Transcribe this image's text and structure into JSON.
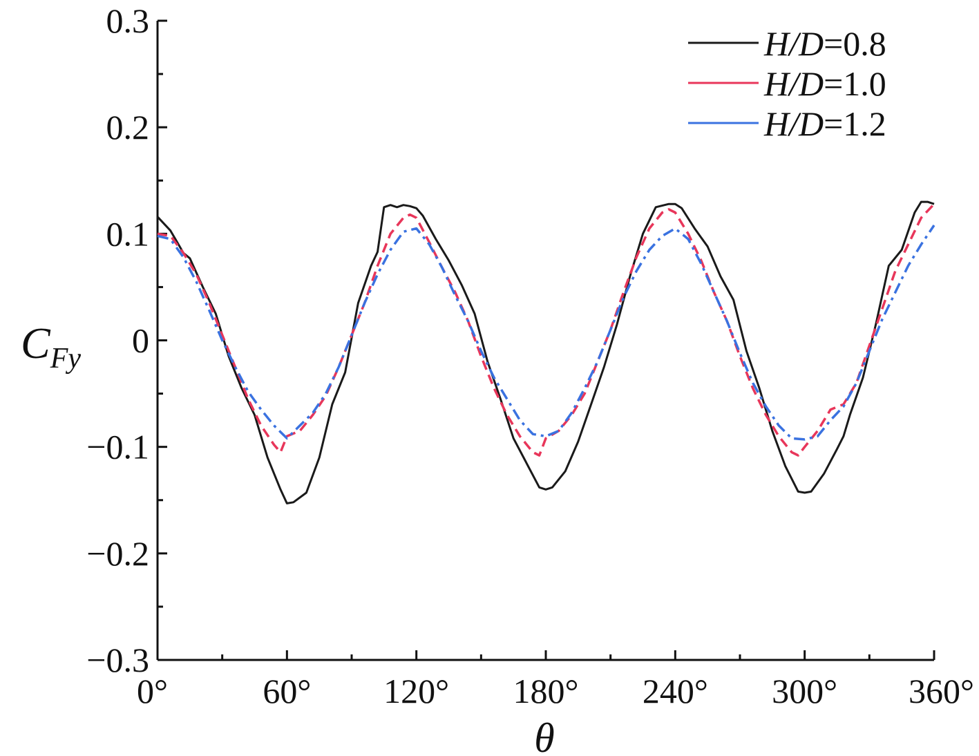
{
  "chart_data": {
    "type": "line",
    "title": "",
    "xlabel": "θ",
    "ylabel": {
      "main": "C",
      "sub": "Fy"
    },
    "xlim": [
      0,
      360
    ],
    "ylim": [
      -0.3,
      0.3
    ],
    "x_ticks": [
      0,
      60,
      120,
      180,
      240,
      300,
      360
    ],
    "x_tick_labels": [
      "0°",
      "60°",
      "120°",
      "180°",
      "240°",
      "300°",
      "360°"
    ],
    "y_ticks": [
      0.3,
      0.2,
      0.1,
      0,
      -0.1,
      -0.2,
      -0.3
    ],
    "y_tick_labels": [
      "0.3",
      "0.2",
      "0.1",
      "0",
      "−0.1",
      "−0.2",
      "−0.3"
    ],
    "grid": false,
    "legend_position": "top-right",
    "series": [
      {
        "name": "H/D=0.8",
        "legend": {
          "italic": "H/D",
          "rest": "=0.8"
        },
        "color": "#1a1a1a",
        "style": "solid",
        "x": [
          0,
          6,
          12,
          15,
          21,
          27,
          33,
          39,
          45,
          51,
          57,
          60,
          63,
          69,
          75,
          81,
          87,
          93,
          99,
          102,
          105,
          108,
          111,
          114,
          117,
          120,
          123,
          129,
          135,
          141,
          147,
          153,
          159,
          165,
          171,
          177,
          180,
          183,
          189,
          195,
          201,
          207,
          213,
          219,
          225,
          231,
          237,
          240,
          243,
          249,
          255,
          261,
          267,
          273,
          279,
          285,
          291,
          297,
          300,
          303,
          309,
          315,
          318,
          321,
          327,
          333,
          339,
          345,
          351,
          354,
          357,
          360
        ],
        "y": [
          0.116,
          0.103,
          0.082,
          0.077,
          0.05,
          0.025,
          -0.015,
          -0.045,
          -0.07,
          -0.11,
          -0.14,
          -0.153,
          -0.152,
          -0.143,
          -0.11,
          -0.06,
          -0.03,
          0.035,
          0.07,
          0.083,
          0.125,
          0.127,
          0.125,
          0.127,
          0.126,
          0.124,
          0.117,
          0.095,
          0.075,
          0.052,
          0.025,
          -0.02,
          -0.055,
          -0.092,
          -0.115,
          -0.138,
          -0.14,
          -0.138,
          -0.123,
          -0.095,
          -0.06,
          -0.025,
          0.015,
          0.06,
          0.1,
          0.125,
          0.128,
          0.128,
          0.124,
          0.105,
          0.088,
          0.06,
          0.038,
          -0.01,
          -0.045,
          -0.085,
          -0.118,
          -0.142,
          -0.143,
          -0.142,
          -0.125,
          -0.102,
          -0.09,
          -0.07,
          -0.035,
          0.015,
          0.07,
          0.085,
          0.12,
          0.13,
          0.13,
          0.128
        ]
      },
      {
        "name": "H/D=1.0",
        "legend": {
          "italic": "H/D",
          "rest": "=1.0"
        },
        "color": "#e8365a",
        "style": "dashed",
        "x": [
          0,
          6,
          12,
          18,
          24,
          30,
          36,
          42,
          48,
          54,
          57,
          60,
          66,
          72,
          78,
          84,
          90,
          96,
          102,
          108,
          114,
          117,
          120,
          126,
          132,
          138,
          144,
          150,
          156,
          162,
          168,
          174,
          177,
          180,
          186,
          192,
          198,
          204,
          210,
          216,
          222,
          228,
          234,
          237,
          240,
          246,
          252,
          258,
          264,
          270,
          276,
          282,
          288,
          294,
          297,
          300,
          306,
          312,
          318,
          324,
          330,
          336,
          342,
          348,
          354,
          360
        ],
        "y": [
          0.1,
          0.098,
          0.082,
          0.062,
          0.035,
          0.005,
          -0.025,
          -0.055,
          -0.08,
          -0.098,
          -0.105,
          -0.09,
          -0.085,
          -0.07,
          -0.052,
          -0.025,
          0.005,
          0.035,
          0.07,
          0.1,
          0.115,
          0.118,
          0.115,
          0.092,
          0.068,
          0.045,
          0.018,
          -0.015,
          -0.045,
          -0.07,
          -0.09,
          -0.105,
          -0.108,
          -0.092,
          -0.085,
          -0.07,
          -0.05,
          -0.02,
          0.01,
          0.045,
          0.078,
          0.105,
          0.12,
          0.123,
          0.12,
          0.1,
          0.075,
          0.045,
          0.018,
          -0.015,
          -0.045,
          -0.07,
          -0.09,
          -0.105,
          -0.108,
          -0.1,
          -0.085,
          -0.065,
          -0.06,
          -0.04,
          -0.005,
          0.03,
          0.065,
          0.09,
          0.115,
          0.128
        ]
      },
      {
        "name": "H/D=1.2",
        "legend": {
          "italic": "H/D",
          "rest": "=1.2"
        },
        "color": "#3a72e0",
        "style": "dashdot",
        "x": [
          0,
          6,
          12,
          18,
          24,
          30,
          36,
          42,
          48,
          54,
          60,
          66,
          72,
          78,
          84,
          90,
          96,
          102,
          108,
          114,
          120,
          126,
          132,
          138,
          144,
          150,
          156,
          162,
          168,
          174,
          180,
          186,
          192,
          198,
          204,
          210,
          216,
          222,
          228,
          234,
          240,
          246,
          252,
          258,
          264,
          270,
          276,
          282,
          288,
          294,
          300,
          306,
          312,
          318,
          324,
          330,
          336,
          342,
          348,
          354,
          360
        ],
        "y": [
          0.098,
          0.095,
          0.078,
          0.055,
          0.028,
          0.0,
          -0.025,
          -0.048,
          -0.065,
          -0.08,
          -0.092,
          -0.08,
          -0.068,
          -0.05,
          -0.025,
          0.005,
          0.035,
          0.062,
          0.085,
          0.102,
          0.105,
          0.09,
          0.068,
          0.042,
          0.018,
          -0.01,
          -0.035,
          -0.055,
          -0.075,
          -0.088,
          -0.09,
          -0.085,
          -0.068,
          -0.045,
          -0.02,
          0.01,
          0.04,
          0.065,
          0.085,
          0.098,
          0.105,
          0.095,
          0.072,
          0.045,
          0.018,
          -0.012,
          -0.04,
          -0.062,
          -0.08,
          -0.092,
          -0.093,
          -0.09,
          -0.075,
          -0.062,
          -0.04,
          -0.01,
          0.02,
          0.045,
          0.07,
          0.09,
          0.108
        ]
      }
    ]
  }
}
